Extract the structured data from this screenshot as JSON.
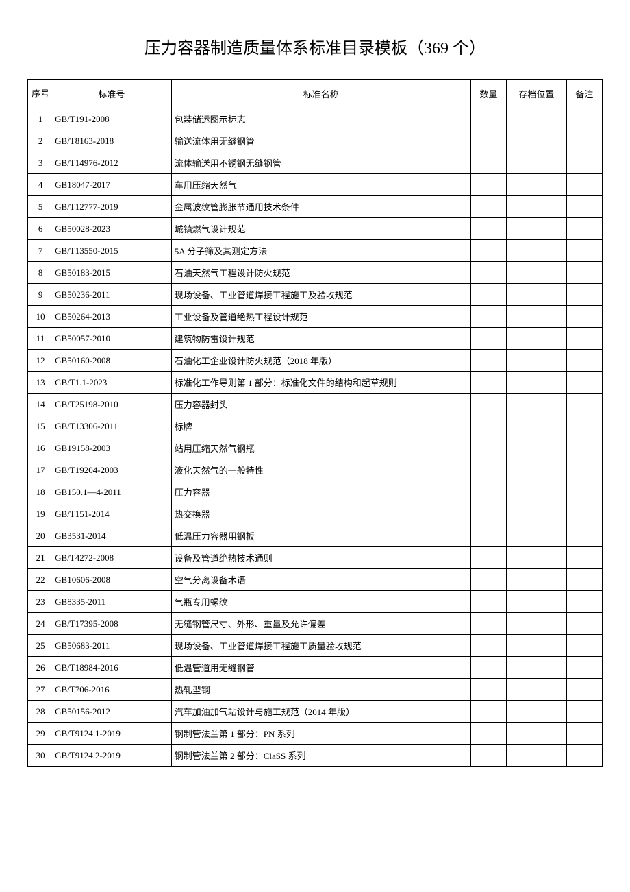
{
  "title": "压力容器制造质量体系标准目录模板（369 个）",
  "table": {
    "headers": {
      "seq": "序号",
      "code": "标准号",
      "name": "标准名称",
      "qty": "数量",
      "loc": "存档位置",
      "note": "备注"
    },
    "rows": [
      {
        "seq": "1",
        "code": "GB/T191-2008",
        "name": "包装储运图示标志",
        "qty": "",
        "loc": "",
        "note": ""
      },
      {
        "seq": "2",
        "code": "GB/T8163-2018",
        "name": "输送流体用无缝钢管",
        "qty": "",
        "loc": "",
        "note": ""
      },
      {
        "seq": "3",
        "code": "GB/T14976-2012",
        "name": "流体输送用不锈钢无缝钢管",
        "qty": "",
        "loc": "",
        "note": ""
      },
      {
        "seq": "4",
        "code": "GB18047-2017",
        "name": "车用压缩天然气",
        "qty": "",
        "loc": "",
        "note": ""
      },
      {
        "seq": "5",
        "code": "GB/T12777-2019",
        "name": "金属波纹管膨胀节通用技术条件",
        "qty": "",
        "loc": "",
        "note": ""
      },
      {
        "seq": "6",
        "code": "GB50028-2023",
        "name": "城镇燃气设计规范",
        "qty": "",
        "loc": "",
        "note": ""
      },
      {
        "seq": "7",
        "code": "GB/T13550-2015",
        "name": "5A 分子筛及其测定方法",
        "qty": "",
        "loc": "",
        "note": ""
      },
      {
        "seq": "8",
        "code": "GB50183-2015",
        "name": "石油天然气工程设计防火规范",
        "qty": "",
        "loc": "",
        "note": ""
      },
      {
        "seq": "9",
        "code": "GB50236-2011",
        "name": "现场设备、工业管道焊接工程施工及验收规范",
        "qty": "",
        "loc": "",
        "note": ""
      },
      {
        "seq": "10",
        "code": "GB50264-2013",
        "name": "工业设备及管道绝热工程设计规范",
        "qty": "",
        "loc": "",
        "note": ""
      },
      {
        "seq": "11",
        "code": "GB50057-2010",
        "name": "建筑物防雷设计规范",
        "qty": "",
        "loc": "",
        "note": ""
      },
      {
        "seq": "12",
        "code": "GB50160-2008",
        "name": "石油化工企业设计防火规范（2018 年版）",
        "qty": "",
        "loc": "",
        "note": ""
      },
      {
        "seq": "13",
        "code": "GB/T1.1-2023",
        "name": "标准化工作导则第 1 部分：标准化文件的结构和起草规则",
        "qty": "",
        "loc": "",
        "note": ""
      },
      {
        "seq": "14",
        "code": "GB/T25198-2010",
        "name": "压力容器封头",
        "qty": "",
        "loc": "",
        "note": ""
      },
      {
        "seq": "15",
        "code": "GB/T13306-2011",
        "name": "标牌",
        "qty": "",
        "loc": "",
        "note": ""
      },
      {
        "seq": "16",
        "code": "GB19158-2003",
        "name": "站用压缩天然气钢瓶",
        "qty": "",
        "loc": "",
        "note": ""
      },
      {
        "seq": "17",
        "code": "GB/T19204-2003",
        "name": "液化天然气的一般特性",
        "qty": "",
        "loc": "",
        "note": ""
      },
      {
        "seq": "18",
        "code": "GB150.1—4-2011",
        "name": "压力容器",
        "qty": "",
        "loc": "",
        "note": ""
      },
      {
        "seq": "19",
        "code": "GB/T151-2014",
        "name": "热交换器",
        "qty": "",
        "loc": "",
        "note": ""
      },
      {
        "seq": "20",
        "code": "GB3531-2014",
        "name": "低温压力容器用钢板",
        "qty": "",
        "loc": "",
        "note": ""
      },
      {
        "seq": "21",
        "code": "GB/T4272-2008",
        "name": "设备及管道绝热技术通则",
        "qty": "",
        "loc": "",
        "note": ""
      },
      {
        "seq": "22",
        "code": "GB10606-2008",
        "name": "空气分离设备术语",
        "qty": "",
        "loc": "",
        "note": ""
      },
      {
        "seq": "23",
        "code": "GB8335-2011",
        "name": "气瓶专用螺纹",
        "qty": "",
        "loc": "",
        "note": ""
      },
      {
        "seq": "24",
        "code": "GB/T17395-2008",
        "name": "无缝钢管尺寸、外形、重量及允许偏差",
        "qty": "",
        "loc": "",
        "note": ""
      },
      {
        "seq": "25",
        "code": "GB50683-2011",
        "name": "现场设备、工业管道焊接工程施工质量验收规范",
        "qty": "",
        "loc": "",
        "note": ""
      },
      {
        "seq": "26",
        "code": "GB/T18984-2016",
        "name": "低温管道用无缝钢管",
        "qty": "",
        "loc": "",
        "note": ""
      },
      {
        "seq": "27",
        "code": "GB/T706-2016",
        "name": "热轧型钢",
        "qty": "",
        "loc": "",
        "note": ""
      },
      {
        "seq": "28",
        "code": "GB50156-2012",
        "name": "汽车加油加气站设计与施工规范（2014 年版）",
        "qty": "",
        "loc": "",
        "note": ""
      },
      {
        "seq": "29",
        "code": "GB/T9124.1-2019",
        "name": "钢制管法兰第 1 部分：PN 系列",
        "qty": "",
        "loc": "",
        "note": ""
      },
      {
        "seq": "30",
        "code": "GB/T9124.2-2019",
        "name": "钢制管法兰第 2 部分：ClaSS 系列",
        "qty": "",
        "loc": "",
        "note": ""
      }
    ]
  }
}
